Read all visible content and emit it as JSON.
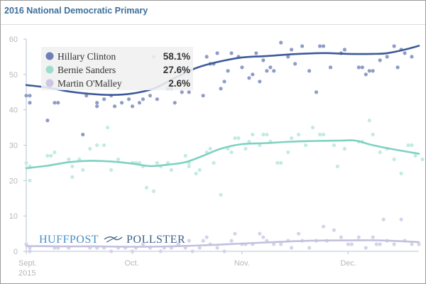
{
  "title": "2016 National Democratic Primary",
  "chart_data": {
    "type": "scatter",
    "title": "2016 National Democratic Primary",
    "xlabel": "",
    "ylabel": "",
    "x_unit": "days since Sept. 1, 2015",
    "xlim": [
      0,
      111
    ],
    "ylim": [
      0,
      60
    ],
    "yticks": [
      0,
      10,
      20,
      30,
      40,
      50,
      60
    ],
    "xticks": [
      {
        "day": 0,
        "label": "Sept.",
        "sublabel": "2015"
      },
      {
        "day": 30,
        "label": "Oct.",
        "sublabel": ""
      },
      {
        "day": 61,
        "label": "Nov.",
        "sublabel": ""
      },
      {
        "day": 91,
        "label": "Dec.",
        "sublabel": ""
      }
    ],
    "grid": false,
    "legend_position": "top-left",
    "series": [
      {
        "name": "Hillary Clinton",
        "latest": "58.1%",
        "color": "#3d5a99",
        "dot_color": "#8e9cc7",
        "trend": [
          [
            0,
            47
          ],
          [
            6,
            46.3
          ],
          [
            12,
            45.2
          ],
          [
            18,
            44.5
          ],
          [
            24,
            44.2
          ],
          [
            30,
            44.6
          ],
          [
            36,
            46
          ],
          [
            42,
            49
          ],
          [
            48,
            51.8
          ],
          [
            54,
            53.5
          ],
          [
            61,
            54.8
          ],
          [
            68,
            55.2
          ],
          [
            75,
            55.7
          ],
          [
            82,
            56
          ],
          [
            86,
            56
          ],
          [
            91,
            55.8
          ],
          [
            98,
            55.8
          ],
          [
            102,
            56
          ],
          [
            107,
            57
          ],
          [
            111,
            58.1
          ]
        ],
        "points": [
          [
            0,
            44
          ],
          [
            1,
            44
          ],
          [
            1,
            42
          ],
          [
            6,
            37
          ],
          [
            8,
            42
          ],
          [
            9,
            42
          ],
          [
            16,
            33
          ],
          [
            17,
            44
          ],
          [
            20,
            42
          ],
          [
            20,
            41
          ],
          [
            22,
            43
          ],
          [
            24,
            44
          ],
          [
            25,
            41
          ],
          [
            27,
            42
          ],
          [
            29,
            43
          ],
          [
            30,
            41
          ],
          [
            32,
            42
          ],
          [
            33,
            43
          ],
          [
            35,
            44
          ],
          [
            36,
            55
          ],
          [
            37,
            43
          ],
          [
            40,
            46
          ],
          [
            41,
            46
          ],
          [
            42,
            42
          ],
          [
            44,
            45
          ],
          [
            46,
            45
          ],
          [
            50,
            44
          ],
          [
            51,
            55
          ],
          [
            52,
            53
          ],
          [
            53,
            53
          ],
          [
            54,
            56
          ],
          [
            55,
            46
          ],
          [
            56,
            48
          ],
          [
            57,
            51
          ],
          [
            58,
            56
          ],
          [
            60,
            55
          ],
          [
            61,
            52
          ],
          [
            63,
            49
          ],
          [
            64,
            50
          ],
          [
            65,
            56
          ],
          [
            66,
            48
          ],
          [
            67,
            54
          ],
          [
            68,
            51
          ],
          [
            69,
            52
          ],
          [
            70,
            51
          ],
          [
            72,
            59
          ],
          [
            74,
            55
          ],
          [
            75,
            57
          ],
          [
            76,
            53
          ],
          [
            78,
            58
          ],
          [
            80,
            51
          ],
          [
            82,
            45
          ],
          [
            83,
            58
          ],
          [
            84,
            58
          ],
          [
            86,
            52
          ],
          [
            89,
            56
          ],
          [
            90,
            57
          ],
          [
            94,
            52
          ],
          [
            95,
            52
          ],
          [
            96,
            50
          ],
          [
            97,
            51
          ],
          [
            98,
            51
          ],
          [
            100,
            54
          ],
          [
            102,
            55
          ],
          [
            104,
            58
          ],
          [
            105,
            52
          ],
          [
            106,
            57
          ],
          [
            107,
            56
          ],
          [
            109,
            55
          ]
        ]
      },
      {
        "name": "Bernie Sanders",
        "latest": "27.6%",
        "color": "#7fd1c3",
        "dot_color": "#c3ebe3",
        "trend": [
          [
            0,
            23.5
          ],
          [
            6,
            24.2
          ],
          [
            12,
            25.2
          ],
          [
            18,
            25.6
          ],
          [
            24,
            25.4
          ],
          [
            30,
            24.8
          ],
          [
            35,
            24.1
          ],
          [
            40,
            24.5
          ],
          [
            45,
            25.2
          ],
          [
            50,
            27
          ],
          [
            55,
            29
          ],
          [
            61,
            30.3
          ],
          [
            68,
            30.6
          ],
          [
            75,
            31
          ],
          [
            82,
            31.2
          ],
          [
            89,
            31.3
          ],
          [
            93,
            31.3
          ],
          [
            98,
            30
          ],
          [
            104,
            28.8
          ],
          [
            111,
            27.6
          ]
        ],
        "points": [
          [
            0,
            25
          ],
          [
            1,
            24
          ],
          [
            1,
            20
          ],
          [
            6,
            27
          ],
          [
            7,
            27
          ],
          [
            8,
            28
          ],
          [
            12,
            26
          ],
          [
            13,
            24
          ],
          [
            13,
            21
          ],
          [
            15,
            26
          ],
          [
            16,
            23
          ],
          [
            18,
            29
          ],
          [
            20,
            30
          ],
          [
            22,
            30
          ],
          [
            23,
            35
          ],
          [
            24,
            23
          ],
          [
            26,
            26
          ],
          [
            30,
            25
          ],
          [
            31,
            25
          ],
          [
            32,
            25
          ],
          [
            33,
            24
          ],
          [
            34,
            18
          ],
          [
            36,
            17
          ],
          [
            37,
            25
          ],
          [
            38,
            24
          ],
          [
            40,
            25
          ],
          [
            41,
            23
          ],
          [
            45,
            27
          ],
          [
            46,
            25
          ],
          [
            46,
            24
          ],
          [
            48,
            22
          ],
          [
            49,
            23
          ],
          [
            51,
            28
          ],
          [
            52,
            29
          ],
          [
            53,
            25
          ],
          [
            55,
            16
          ],
          [
            57,
            29
          ],
          [
            58,
            28
          ],
          [
            59,
            32
          ],
          [
            60,
            32
          ],
          [
            62,
            29
          ],
          [
            63,
            31
          ],
          [
            64,
            33
          ],
          [
            66,
            30
          ],
          [
            67,
            33
          ],
          [
            68,
            33
          ],
          [
            69,
            31
          ],
          [
            71,
            25
          ],
          [
            72,
            25
          ],
          [
            74,
            28
          ],
          [
            75,
            32
          ],
          [
            77,
            33
          ],
          [
            79,
            30
          ],
          [
            81,
            35
          ],
          [
            83,
            33
          ],
          [
            84,
            33
          ],
          [
            87,
            30
          ],
          [
            88,
            24
          ],
          [
            90,
            29
          ],
          [
            94,
            31
          ],
          [
            95,
            31
          ],
          [
            97,
            37
          ],
          [
            98,
            33
          ],
          [
            100,
            28
          ],
          [
            102,
            29
          ],
          [
            104,
            26
          ],
          [
            106,
            22
          ],
          [
            108,
            30
          ],
          [
            109,
            30
          ],
          [
            110,
            27
          ],
          [
            112,
            26
          ]
        ]
      },
      {
        "name": "Martin O'Malley",
        "latest": "2.6%",
        "color": "#c3bfde",
        "dot_color": "#d6d3ea",
        "trend": [
          [
            0,
            1.5
          ],
          [
            10,
            1.4
          ],
          [
            20,
            1.4
          ],
          [
            30,
            1.3
          ],
          [
            40,
            1.4
          ],
          [
            50,
            1.7
          ],
          [
            61,
            2.2
          ],
          [
            70,
            2.6
          ],
          [
            80,
            3
          ],
          [
            91,
            3.1
          ],
          [
            100,
            3.1
          ],
          [
            111,
            2.6
          ]
        ],
        "points": [
          [
            0,
            2
          ],
          [
            1,
            1
          ],
          [
            1,
            0
          ],
          [
            8,
            1
          ],
          [
            9,
            1
          ],
          [
            12,
            1
          ],
          [
            18,
            1
          ],
          [
            20,
            1
          ],
          [
            22,
            1
          ],
          [
            24,
            0
          ],
          [
            26,
            1
          ],
          [
            28,
            1
          ],
          [
            30,
            0
          ],
          [
            31,
            1
          ],
          [
            33,
            2
          ],
          [
            35,
            1
          ],
          [
            38,
            0
          ],
          [
            39,
            1
          ],
          [
            41,
            1
          ],
          [
            43,
            2
          ],
          [
            45,
            1
          ],
          [
            46,
            3
          ],
          [
            47,
            0
          ],
          [
            49,
            1
          ],
          [
            50,
            3
          ],
          [
            51,
            4
          ],
          [
            52,
            2
          ],
          [
            54,
            1
          ],
          [
            56,
            0
          ],
          [
            58,
            3
          ],
          [
            59,
            5
          ],
          [
            61,
            2
          ],
          [
            62,
            2
          ],
          [
            64,
            2
          ],
          [
            66,
            5
          ],
          [
            67,
            4
          ],
          [
            68,
            3
          ],
          [
            70,
            2
          ],
          [
            72,
            2
          ],
          [
            74,
            3
          ],
          [
            75,
            1
          ],
          [
            77,
            5
          ],
          [
            78,
            3
          ],
          [
            80,
            1
          ],
          [
            82,
            3
          ],
          [
            84,
            7
          ],
          [
            85,
            3
          ],
          [
            87,
            6
          ],
          [
            89,
            4
          ],
          [
            91,
            2
          ],
          [
            92,
            2
          ],
          [
            94,
            4
          ],
          [
            96,
            1
          ],
          [
            98,
            4
          ],
          [
            99,
            2
          ],
          [
            100,
            2
          ],
          [
            101,
            9
          ],
          [
            102,
            3
          ],
          [
            104,
            2
          ],
          [
            106,
            9
          ],
          [
            107,
            3
          ],
          [
            109,
            2
          ],
          [
            111,
            2
          ]
        ]
      }
    ]
  },
  "branding": {
    "left": "HUFFPOST",
    "right": "POLLSTER"
  }
}
